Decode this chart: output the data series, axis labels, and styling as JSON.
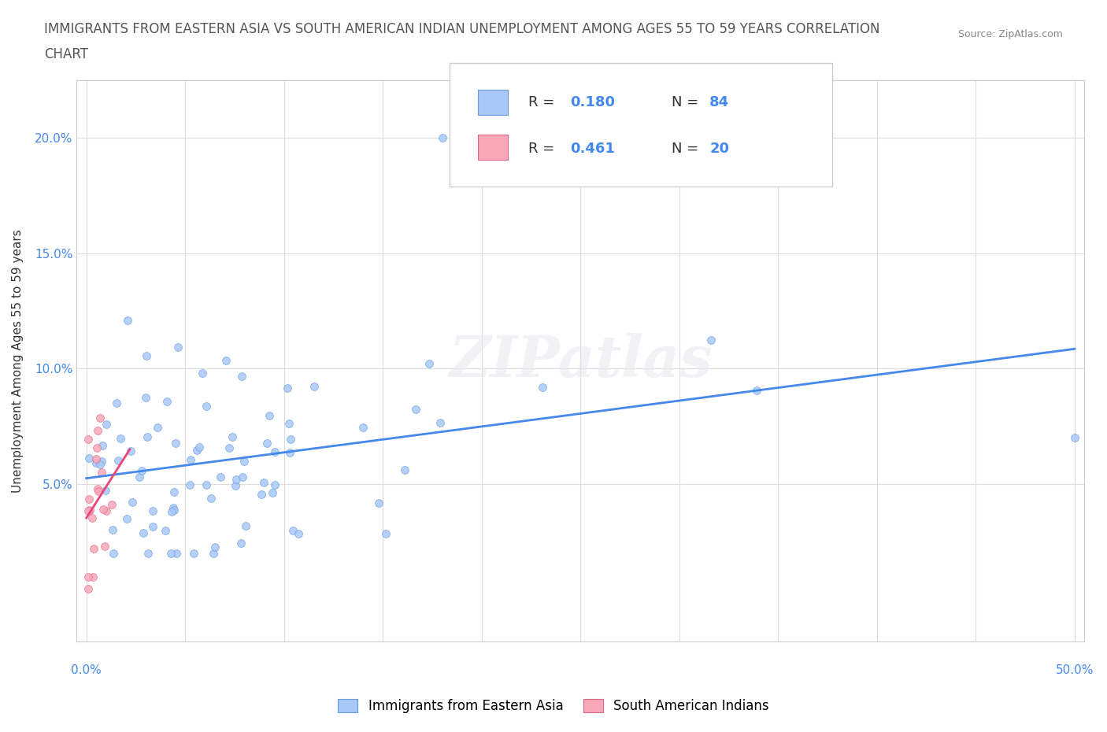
{
  "title_line1": "IMMIGRANTS FROM EASTERN ASIA VS SOUTH AMERICAN INDIAN UNEMPLOYMENT AMONG AGES 55 TO 59 YEARS CORRELATION",
  "title_line2": "CHART",
  "source": "Source: ZipAtlas.com",
  "ylabel": "Unemployment Among Ages 55 to 59 years",
  "r_blue": 0.18,
  "n_blue": 84,
  "r_pink": 0.461,
  "n_pink": 20,
  "legend_label_blue": "Immigrants from Eastern Asia",
  "legend_label_pink": "South American Indians",
  "blue_scatter_color": "#a8c8f8",
  "blue_scatter_edge": "#6699dd",
  "pink_scatter_color": "#f8a8b8",
  "pink_scatter_edge": "#dd6688",
  "blue_trend_color": "#4488ee",
  "pink_trend_color": "#ee4477",
  "watermark": "ZIPatlas",
  "tick_color": "#4488ee",
  "title_color": "#555555",
  "source_color": "#888888",
  "grid_color": "#dddddd",
  "legend_edge_color": "#cccccc",
  "spine_color": "#cccccc"
}
